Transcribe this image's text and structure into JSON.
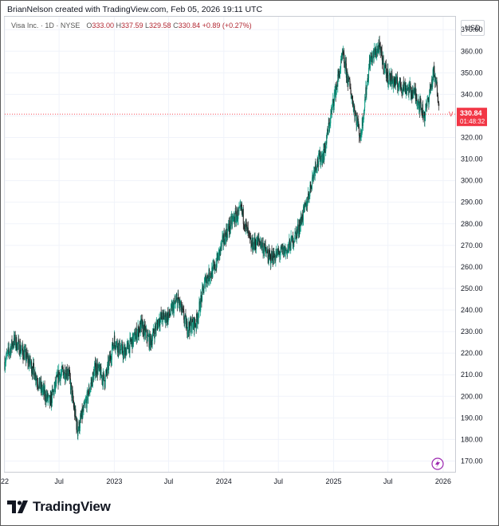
{
  "attribution": "BrianNelson created with TradingView.com, Feb 05, 2026 19:11 UTC",
  "brand": "TradingView",
  "legend": {
    "symbol": "Visa Inc. · 1D · NYSE",
    "open_label": "O",
    "open": "333.00",
    "high_label": "H",
    "high": "337.59",
    "low_label": "L",
    "low": "329.58",
    "close_label": "C",
    "close": "330.84",
    "change": "+0.89 (+0.27%)"
  },
  "currency": "USD",
  "price_badge": {
    "letter": "V",
    "price": "330.84",
    "countdown": "01:48:32"
  },
  "colors": {
    "up": "#089981",
    "down": "#1f1f1f",
    "badge": "#f23645",
    "last_line": "#f23645",
    "grid": "#f0f3fa"
  },
  "chart_data": {
    "type": "candlestick",
    "title": "",
    "ylim": [
      165,
      376
    ],
    "y_ticks": [
      "170.00",
      "180.00",
      "190.00",
      "200.00",
      "210.00",
      "220.00",
      "230.00",
      "240.00",
      "250.00",
      "260.00",
      "270.00",
      "280.00",
      "290.00",
      "300.00",
      "310.00",
      "320.00",
      "330.00",
      "340.00",
      "350.00",
      "360.00",
      "370.00"
    ],
    "x_ticks": [
      "22",
      "Jul",
      "2023",
      "Jul",
      "2024",
      "Jul",
      "2025",
      "Jul",
      "2026"
    ],
    "last_price": 330.84,
    "series": [
      {
        "date": "2022-01",
        "close": 216
      },
      {
        "date": "2022-02",
        "close": 226
      },
      {
        "date": "2022-03",
        "close": 221
      },
      {
        "date": "2022-04",
        "close": 214
      },
      {
        "date": "2022-05",
        "close": 204
      },
      {
        "date": "2022-06",
        "close": 197
      },
      {
        "date": "2022-07",
        "close": 210
      },
      {
        "date": "2022-08",
        "close": 212
      },
      {
        "date": "2022-09",
        "close": 184
      },
      {
        "date": "2022-10",
        "close": 198
      },
      {
        "date": "2022-11",
        "close": 214
      },
      {
        "date": "2022-12",
        "close": 207
      },
      {
        "date": "2023-01",
        "close": 226
      },
      {
        "date": "2023-02",
        "close": 220
      },
      {
        "date": "2023-03",
        "close": 225
      },
      {
        "date": "2023-04",
        "close": 233
      },
      {
        "date": "2023-05",
        "close": 225
      },
      {
        "date": "2023-06",
        "close": 236
      },
      {
        "date": "2023-07",
        "close": 237
      },
      {
        "date": "2023-08",
        "close": 245
      },
      {
        "date": "2023-09",
        "close": 232
      },
      {
        "date": "2023-10",
        "close": 234
      },
      {
        "date": "2023-11",
        "close": 254
      },
      {
        "date": "2023-12",
        "close": 259
      },
      {
        "date": "2024-01",
        "close": 273
      },
      {
        "date": "2024-02",
        "close": 282
      },
      {
        "date": "2024-03",
        "close": 286
      },
      {
        "date": "2024-04",
        "close": 270
      },
      {
        "date": "2024-05",
        "close": 272
      },
      {
        "date": "2024-06",
        "close": 264
      },
      {
        "date": "2024-07",
        "close": 266
      },
      {
        "date": "2024-08",
        "close": 268
      },
      {
        "date": "2024-09",
        "close": 276
      },
      {
        "date": "2024-10",
        "close": 288
      },
      {
        "date": "2024-11",
        "close": 307
      },
      {
        "date": "2024-12",
        "close": 313
      },
      {
        "date": "2025-01",
        "close": 337
      },
      {
        "date": "2025-02",
        "close": 358
      },
      {
        "date": "2025-03",
        "close": 340
      },
      {
        "date": "2025-04",
        "close": 320
      },
      {
        "date": "2025-05",
        "close": 355
      },
      {
        "date": "2025-06",
        "close": 362
      },
      {
        "date": "2025-07",
        "close": 348
      },
      {
        "date": "2025-08",
        "close": 345
      },
      {
        "date": "2025-09",
        "close": 343
      },
      {
        "date": "2025-10",
        "close": 340
      },
      {
        "date": "2025-11",
        "close": 330
      },
      {
        "date": "2025-12",
        "close": 350
      },
      {
        "date": "2026-01",
        "close": 328
      },
      {
        "date": "2026-02",
        "close": 331
      }
    ]
  }
}
